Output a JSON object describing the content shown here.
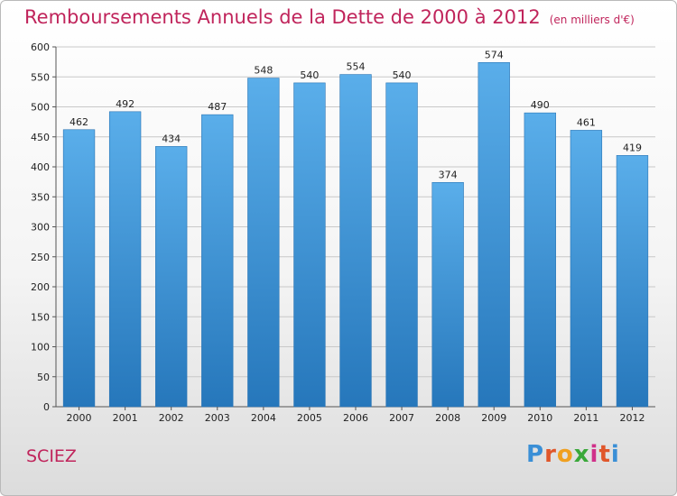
{
  "title": "Remboursements Annuels de la Dette de 2000 à 2012",
  "unit": "(en milliers d'€)",
  "commune": "SCIEZ",
  "logo": {
    "letters": [
      "P",
      "r",
      "o",
      "x",
      "i",
      "t",
      "i"
    ],
    "colors": [
      "#3a8fd6",
      "#e0562a",
      "#f0a020",
      "#3aa83a",
      "#d0308a",
      "#e0562a",
      "#3a8fd6"
    ]
  },
  "colors": {
    "bar": "#3a93d8",
    "title": "#c0245b"
  },
  "chart_data": {
    "type": "bar",
    "title": "Remboursements Annuels de la Dette de 2000 à 2012",
    "xlabel": "",
    "ylabel": "",
    "categories": [
      "2000",
      "2001",
      "2002",
      "2003",
      "2004",
      "2005",
      "2006",
      "2007",
      "2008",
      "2009",
      "2010",
      "2011",
      "2012"
    ],
    "values": [
      462,
      492,
      434,
      487,
      548,
      540,
      554,
      540,
      374,
      574,
      490,
      461,
      419
    ],
    "ylim": [
      0,
      600
    ],
    "yticks": [
      0,
      50,
      100,
      150,
      200,
      250,
      300,
      350,
      400,
      450,
      500,
      550,
      600
    ],
    "grid": true
  }
}
